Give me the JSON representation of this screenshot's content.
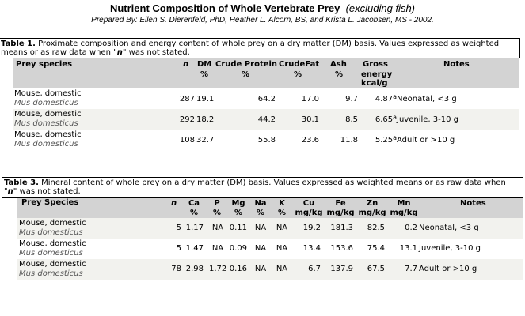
{
  "title": "Nutrient Composition of Whole Vertebrate Prey",
  "subtitle": "(excluding fish)",
  "prepared_by": "Prepared By:  Ellen S. Dierenfeld, PhD,  Heather L. Alcorn, BS, and Krista L. Jacobsen, MS - 2002.",
  "table1": {
    "caption_label": "Table 1.",
    "caption_line1": " Proximate composition and energy content of whole prey on a dry matter (DM) basis. Values expressed as weighted",
    "caption_line2a": "means or as raw data when \"",
    "caption_n": "n",
    "caption_line2b": "\" was not stated.",
    "headers": {
      "species": "Prey species",
      "n": "n",
      "dm": "DM",
      "dm_unit": "%",
      "cp": "Crude Protein",
      "cp_unit": "%",
      "cf": "CrudeFat",
      "cf_unit": "%",
      "ash": "Ash",
      "ash_unit": "%",
      "ge": "Gross",
      "ge2": "energy",
      "ge3": "kcal/g",
      "notes": "Notes"
    },
    "rows": [
      {
        "common": "Mouse, domestic",
        "sci": "Mus domesticus",
        "n": "287",
        "dm": "19.1",
        "cp": "64.2",
        "cf": "17.0",
        "ash": "9.7",
        "ge": "4.87",
        "fn": "a",
        "notes": "Neonatal, <3 g"
      },
      {
        "common": "Mouse, domestic",
        "sci": "Mus domesticus",
        "n": "292",
        "dm": "18.2",
        "cp": "44.2",
        "cf": "30.1",
        "ash": "8.5",
        "ge": "6.65",
        "fn": "a",
        "notes": "Juvenile, 3-10 g"
      },
      {
        "common": "Mouse, domestic",
        "sci": "Mus domesticus",
        "n": "108",
        "dm": "32.7",
        "cp": "55.8",
        "cf": "23.6",
        "ash": "11.8",
        "ge": "5.25",
        "fn": "a",
        "notes": "Adult or >10 g"
      }
    ]
  },
  "table3": {
    "caption_label": "Table 3.",
    "caption_line1": " Mineral content of whole prey on a dry matter (DM) basis. Values expressed as weighted means or as raw data when",
    "caption_line2a": "\"",
    "caption_n": "n",
    "caption_line2b": "\" was not stated.",
    "headers": {
      "species": "Prey Species",
      "n": "n",
      "ca": "Ca",
      "ca_u": "%",
      "p": "P",
      "p_u": "%",
      "mg": "Mg",
      "mg_u": "%",
      "na": "Na",
      "na_u": "%",
      "k": "K",
      "k_u": "%",
      "cu": "Cu",
      "cu_u": "mg/kg",
      "fe": "Fe",
      "fe_u": "mg/kg",
      "zn": "Zn",
      "zn_u": "mg/kg",
      "mn": "Mn",
      "mn_u": "mg/kg",
      "notes": "Notes"
    },
    "rows": [
      {
        "common": "Mouse, domestic",
        "sci": "Mus domesticus",
        "n": "5",
        "ca": "1.17",
        "p": "NA",
        "mg": "0.11",
        "na": "NA",
        "k": "NA",
        "cu": "19.2",
        "fe": "181.3",
        "zn": "82.5",
        "mn": "0.2",
        "notes": "Neonatal, <3 g"
      },
      {
        "common": "Mouse, domestic",
        "sci": "Mus domesticus",
        "n": "5",
        "ca": "1.47",
        "p": "NA",
        "mg": "0.09",
        "na": "NA",
        "k": "NA",
        "cu": "13.4",
        "fe": "153.6",
        "zn": "75.4",
        "mn": "13.1",
        "notes": "Juvenile, 3-10 g"
      },
      {
        "common": "Mouse, domestic",
        "sci": "Mus domesticus",
        "n": "78",
        "ca": "2.98",
        "p": "1.72",
        "mg": "0.16",
        "na": "NA",
        "k": "NA",
        "cu": "6.7",
        "fe": "137.9",
        "zn": "67.5",
        "mn": "7.7",
        "notes": "Adult or >10 g"
      }
    ]
  }
}
